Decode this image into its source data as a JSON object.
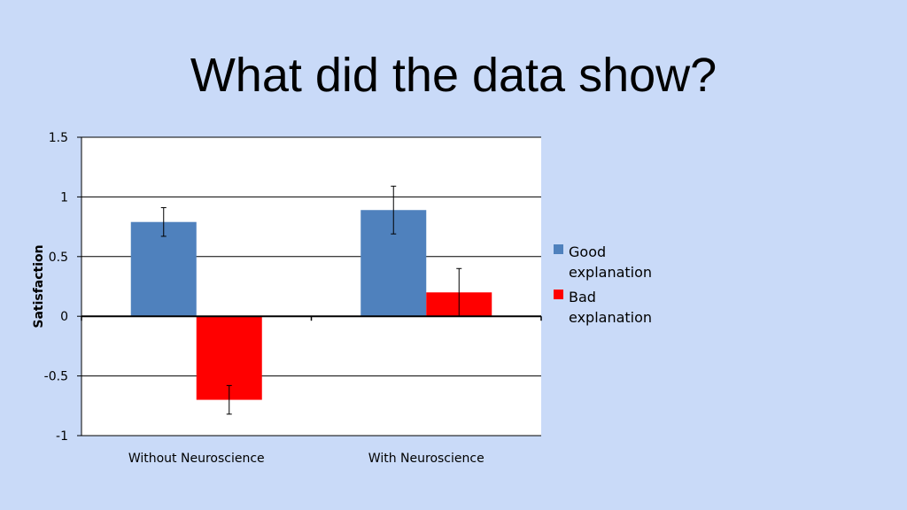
{
  "slide": {
    "title": "What did the data show?"
  },
  "chart_data": {
    "type": "bar",
    "title": "",
    "xlabel": "",
    "ylabel": "Satisfaction",
    "categories": [
      "Without Neuroscience",
      "With Neuroscience"
    ],
    "series": [
      {
        "name": "Good explanation",
        "legend_lines": [
          "Good",
          "explanation"
        ],
        "color": "#4f81bd",
        "values": [
          0.79,
          0.89
        ],
        "error": [
          0.12,
          0.2
        ]
      },
      {
        "name": "Bad explanation",
        "legend_lines": [
          "Bad",
          "explanation"
        ],
        "color": "#ff0000",
        "values": [
          -0.7,
          0.2
        ],
        "error": [
          0.12,
          0.2
        ]
      }
    ],
    "ylim": [
      -1,
      1.5
    ],
    "yticks": [
      1.5,
      1,
      0.5,
      0,
      -0.5,
      -1
    ],
    "ytick_labels": [
      "1.5",
      "1",
      "0.5",
      "0",
      "-0.5",
      "-1"
    ],
    "grid": true,
    "legend_position": "right"
  }
}
